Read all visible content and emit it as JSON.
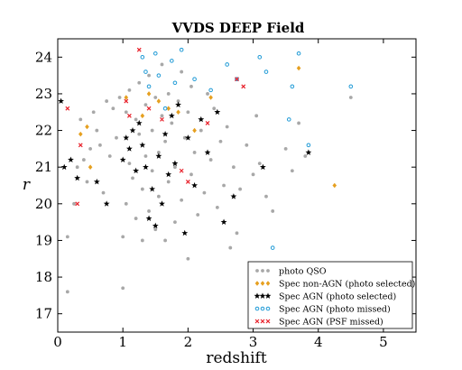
{
  "chart_data": {
    "type": "scatter",
    "title": "VVDS DEEP Field",
    "xlabel": "redshift",
    "ylabel": "r",
    "xlim": [
      0,
      5.5
    ],
    "ylim": [
      16.5,
      24.5
    ],
    "xticks": [
      0,
      1,
      2,
      3,
      4,
      5
    ],
    "yticks": [
      17,
      18,
      19,
      20,
      21,
      22,
      23,
      24
    ],
    "grid": false,
    "legend_position": "lower-right",
    "colors": {
      "photo_qso": "#a8a8a8",
      "spec_non_agn": "#e6a020",
      "spec_agn_photo_selected": "#000000",
      "spec_agn_photo_missed": "#1f9ad6",
      "spec_agn_psf_missed": "#e8202a"
    },
    "series": [
      {
        "name": "photo QSO",
        "marker": "dot",
        "points": [
          [
            0.15,
            17.6
          ],
          [
            0.15,
            19.1
          ],
          [
            0.25,
            20.0
          ],
          [
            0.3,
            21.0
          ],
          [
            0.35,
            22.3
          ],
          [
            0.4,
            21.2
          ],
          [
            0.45,
            20.6
          ],
          [
            0.5,
            21.5
          ],
          [
            0.55,
            22.5
          ],
          [
            0.6,
            22.0
          ],
          [
            0.65,
            21.6
          ],
          [
            0.7,
            20.3
          ],
          [
            0.75,
            22.8
          ],
          [
            0.8,
            21.3
          ],
          [
            0.85,
            22.6
          ],
          [
            0.9,
            21.8
          ],
          [
            0.95,
            22.9
          ],
          [
            1.0,
            17.7
          ],
          [
            1.0,
            19.1
          ],
          [
            1.05,
            20.0
          ],
          [
            1.05,
            22.5
          ],
          [
            1.1,
            21.1
          ],
          [
            1.1,
            23.1
          ],
          [
            1.15,
            20.7
          ],
          [
            1.2,
            22.3
          ],
          [
            1.2,
            19.6
          ],
          [
            1.25,
            21.9
          ],
          [
            1.25,
            23.3
          ],
          [
            1.3,
            19.0
          ],
          [
            1.3,
            20.4
          ],
          [
            1.35,
            22.7
          ],
          [
            1.35,
            21.3
          ],
          [
            1.4,
            19.8
          ],
          [
            1.4,
            23.5
          ],
          [
            1.45,
            20.9
          ],
          [
            1.45,
            22.0
          ],
          [
            1.5,
            19.3
          ],
          [
            1.5,
            22.9
          ],
          [
            1.55,
            21.4
          ],
          [
            1.55,
            20.2
          ],
          [
            1.6,
            23.8
          ],
          [
            1.6,
            22.4
          ],
          [
            1.65,
            19.0
          ],
          [
            1.65,
            21.7
          ],
          [
            1.7,
            20.6
          ],
          [
            1.7,
            23.0
          ],
          [
            1.75,
            22.2
          ],
          [
            1.8,
            19.5
          ],
          [
            1.8,
            21.0
          ],
          [
            1.85,
            22.8
          ],
          [
            1.9,
            20.1
          ],
          [
            1.9,
            23.6
          ],
          [
            1.95,
            21.8
          ],
          [
            2.0,
            18.5
          ],
          [
            2.0,
            22.5
          ],
          [
            2.05,
            20.8
          ],
          [
            2.05,
            23.2
          ],
          [
            2.1,
            21.4
          ],
          [
            2.15,
            19.7
          ],
          [
            2.2,
            22.0
          ],
          [
            2.25,
            20.3
          ],
          [
            2.3,
            23.0
          ],
          [
            2.35,
            21.2
          ],
          [
            2.4,
            22.6
          ],
          [
            2.45,
            19.9
          ],
          [
            2.5,
            21.7
          ],
          [
            2.55,
            20.5
          ],
          [
            2.6,
            22.1
          ],
          [
            2.65,
            18.8
          ],
          [
            2.7,
            21.0
          ],
          [
            2.75,
            19.2
          ],
          [
            2.8,
            20.4
          ],
          [
            2.9,
            21.6
          ],
          [
            3.0,
            20.8
          ],
          [
            3.05,
            22.4
          ],
          [
            3.1,
            21.1
          ],
          [
            3.2,
            20.2
          ],
          [
            3.3,
            19.8
          ],
          [
            3.5,
            21.5
          ],
          [
            3.6,
            20.9
          ],
          [
            3.7,
            22.2
          ],
          [
            3.8,
            21.3
          ],
          [
            4.5,
            22.9
          ]
        ]
      },
      {
        "name": "Spec non-AGN (photo selected)",
        "marker": "diamond",
        "points": [
          [
            0.35,
            21.9
          ],
          [
            0.45,
            22.1
          ],
          [
            0.5,
            21.0
          ],
          [
            1.05,
            22.9
          ],
          [
            1.3,
            22.4
          ],
          [
            1.4,
            23.0
          ],
          [
            1.55,
            22.8
          ],
          [
            1.7,
            22.6
          ],
          [
            1.85,
            22.5
          ],
          [
            2.1,
            22.0
          ],
          [
            2.35,
            22.9
          ],
          [
            3.7,
            23.7
          ],
          [
            4.25,
            20.5
          ]
        ]
      },
      {
        "name": "Spec AGN (photo selected)",
        "marker": "star",
        "points": [
          [
            0.05,
            22.8
          ],
          [
            0.1,
            21.0
          ],
          [
            0.2,
            21.2
          ],
          [
            0.3,
            20.7
          ],
          [
            0.6,
            20.6
          ],
          [
            0.75,
            20.0
          ],
          [
            1.0,
            21.2
          ],
          [
            1.05,
            21.8
          ],
          [
            1.1,
            21.5
          ],
          [
            1.15,
            22.0
          ],
          [
            1.2,
            20.9
          ],
          [
            1.25,
            22.2
          ],
          [
            1.3,
            21.6
          ],
          [
            1.35,
            21.0
          ],
          [
            1.4,
            19.6
          ],
          [
            1.45,
            20.4
          ],
          [
            1.5,
            19.4
          ],
          [
            1.55,
            21.3
          ],
          [
            1.6,
            20.0
          ],
          [
            1.65,
            21.9
          ],
          [
            1.7,
            20.8
          ],
          [
            1.75,
            22.4
          ],
          [
            1.8,
            21.1
          ],
          [
            1.85,
            22.7
          ],
          [
            1.95,
            19.2
          ],
          [
            2.0,
            21.8
          ],
          [
            2.1,
            20.5
          ],
          [
            2.2,
            22.3
          ],
          [
            2.3,
            21.4
          ],
          [
            2.45,
            22.5
          ],
          [
            2.55,
            19.5
          ],
          [
            2.7,
            20.2
          ],
          [
            3.15,
            21.0
          ],
          [
            3.85,
            21.4
          ]
        ]
      },
      {
        "name": "Spec AGN (photo missed)",
        "marker": "circle",
        "points": [
          [
            1.3,
            24.0
          ],
          [
            1.35,
            23.6
          ],
          [
            1.4,
            23.2
          ],
          [
            1.5,
            24.1
          ],
          [
            1.55,
            23.5
          ],
          [
            1.65,
            22.6
          ],
          [
            1.75,
            23.9
          ],
          [
            1.8,
            23.3
          ],
          [
            1.9,
            24.2
          ],
          [
            2.1,
            23.4
          ],
          [
            2.35,
            23.1
          ],
          [
            2.6,
            23.8
          ],
          [
            2.75,
            23.4
          ],
          [
            3.1,
            24.0
          ],
          [
            3.2,
            23.6
          ],
          [
            3.3,
            18.8
          ],
          [
            3.55,
            22.3
          ],
          [
            3.6,
            23.2
          ],
          [
            3.7,
            24.1
          ],
          [
            3.85,
            21.6
          ],
          [
            4.5,
            23.2
          ]
        ]
      },
      {
        "name": "Spec AGN (PSF missed)",
        "marker": "x",
        "points": [
          [
            0.15,
            22.6
          ],
          [
            0.3,
            20.0
          ],
          [
            0.35,
            21.6
          ],
          [
            1.05,
            22.8
          ],
          [
            1.1,
            22.4
          ],
          [
            1.25,
            24.2
          ],
          [
            1.4,
            22.6
          ],
          [
            1.6,
            22.3
          ],
          [
            1.9,
            20.9
          ],
          [
            2.0,
            20.6
          ],
          [
            2.3,
            22.2
          ],
          [
            2.75,
            23.4
          ],
          [
            2.85,
            23.2
          ]
        ]
      }
    ]
  }
}
